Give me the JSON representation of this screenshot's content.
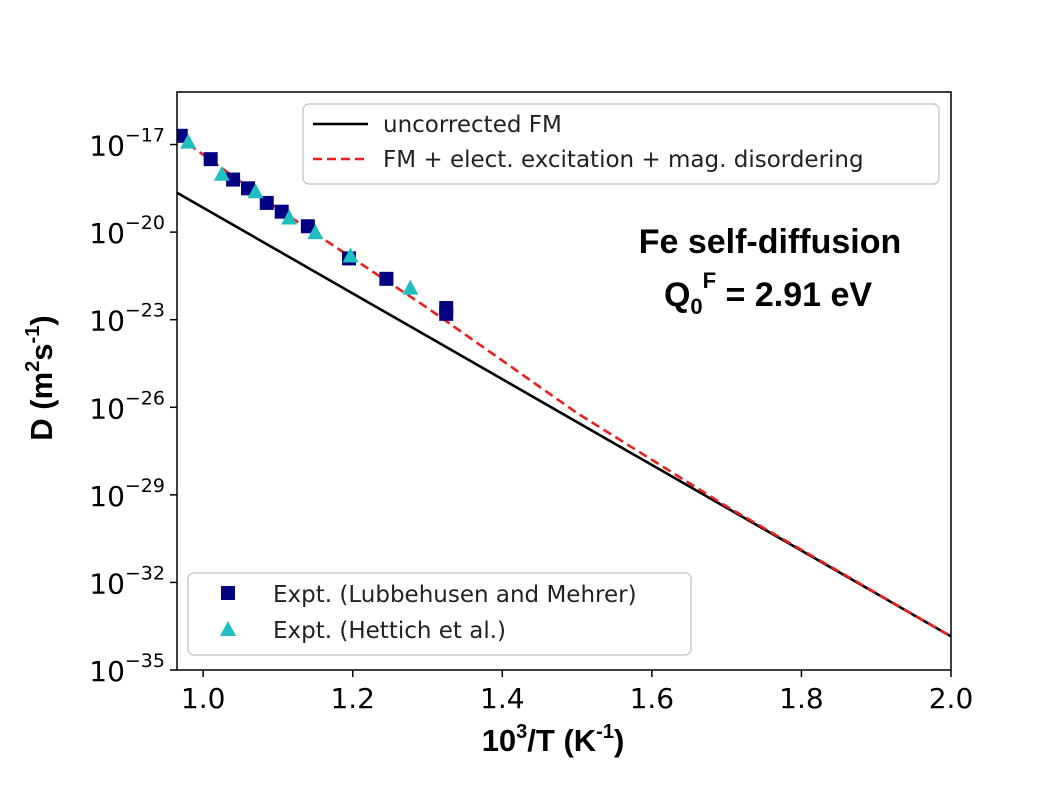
{
  "chart_data": {
    "type": "scatter",
    "xlabel": {
      "base": "10",
      "sup": "3",
      "mid": "/T (K",
      "sup2": "-1",
      "end": ")"
    },
    "ylabel": {
      "pre": "D (m",
      "sup1": "2",
      "mid": "s",
      "sup2": "-1",
      "end": ")"
    },
    "xlim": [
      0.965,
      2.0
    ],
    "ylim_log10": [
      -35,
      -15.2
    ],
    "yscale": "log",
    "x_ticks": [
      "1.0",
      "1.2",
      "1.4",
      "1.6",
      "1.8",
      "2.0"
    ],
    "x_tick_values": [
      1.0,
      1.2,
      1.4,
      1.6,
      1.8,
      2.0
    ],
    "y_tick_exponents": [
      -17,
      -20,
      -23,
      -26,
      -29,
      -32,
      -35
    ],
    "y_tick_base": "10",
    "y_tick_labels": [
      "−17",
      "−20",
      "−23",
      "−26",
      "−29",
      "−32",
      "−35"
    ],
    "grid": false,
    "lines": [
      {
        "name": "uncorrected FM",
        "style": "solid",
        "color": "#000000",
        "x": [
          0.965,
          2.0
        ],
        "log10_y": [
          -18.65,
          -33.85
        ]
      },
      {
        "name": "FM + elect. excitation + mag. disordering",
        "style": "dashed",
        "color": "#e8201e",
        "x": [
          0.965,
          1.1,
          1.3,
          1.5,
          1.7,
          2.0
        ],
        "log10_y": [
          -16.7,
          -19.2,
          -22.6,
          -26.2,
          -29.4,
          -33.85
        ]
      }
    ],
    "line_legend_position": "top-right",
    "scatter_series": [
      {
        "name": "Expt. (Lubbehusen and Mehrer)",
        "marker": "square",
        "color": "#000080",
        "x": [
          0.97,
          1.01,
          1.04,
          1.06,
          1.085,
          1.105,
          1.14,
          1.195,
          1.245,
          1.325,
          1.325
        ],
        "log10_y": [
          -16.7,
          -17.5,
          -18.2,
          -18.5,
          -19.0,
          -19.3,
          -19.8,
          -20.9,
          -21.6,
          -22.6,
          -22.8
        ]
      },
      {
        "name": "Expt. (Hettich et al.)",
        "marker": "triangle",
        "color": "#1fbfbf",
        "x": [
          0.98,
          1.025,
          1.07,
          1.115,
          1.15,
          1.197,
          1.277
        ],
        "log10_y": [
          -16.9,
          -18.0,
          -18.6,
          -19.5,
          -20.0,
          -20.8,
          -21.9
        ]
      }
    ],
    "scatter_legend_position": "bottom-left",
    "annotation": {
      "line1": "Fe self-diffusion",
      "line2_pre": "Q",
      "line2_sub": "0",
      "line2_sup": "F",
      "line2_post": " = 2.91 eV"
    }
  }
}
